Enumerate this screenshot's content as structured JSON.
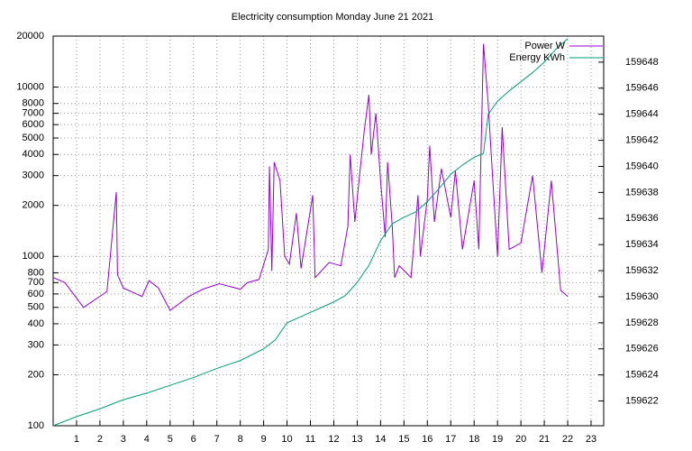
{
  "chart_data": {
    "type": "line",
    "title": "Electricity consumption Monday June 21 2021",
    "xlim": [
      0,
      23.54
    ],
    "xticks": [
      1,
      2,
      3,
      4,
      5,
      6,
      7,
      8,
      9,
      10,
      11,
      12,
      13,
      14,
      15,
      16,
      17,
      18,
      19,
      20,
      21,
      22,
      23
    ],
    "ylim": [
      100,
      20000
    ],
    "log_y": true,
    "yticks": [
      100,
      200,
      300,
      400,
      500,
      600,
      700,
      800,
      1000,
      2000,
      3000,
      4000,
      5000,
      6000,
      7000,
      8000,
      10000,
      20000
    ],
    "y2lim": [
      159620.1,
      159650
    ],
    "y2ticks": [
      159622,
      159624,
      159626,
      159628,
      159630,
      159632,
      159634,
      159636,
      159638,
      159640,
      159642,
      159644,
      159646,
      159648
    ],
    "grid": true,
    "legend": "top-right",
    "series": [
      {
        "name": "Power W",
        "color": "#9400d3",
        "x": [
          0,
          0.5,
          1.3,
          2.3,
          2.7,
          2.75,
          3,
          3.8,
          4.1,
          4.5,
          5,
          5.8,
          6.4,
          7.1,
          8,
          8.3,
          8.8,
          9.2,
          9.25,
          9.35,
          9.45,
          9.7,
          9.9,
          10.1,
          10.4,
          10.6,
          11.1,
          11.2,
          11.8,
          12.3,
          12.6,
          12.7,
          12.9,
          13.1,
          13.3,
          13.5,
          13.6,
          13.8,
          14,
          14.2,
          14.3,
          14.5,
          14.6,
          14.8,
          15.3,
          15.6,
          15.7,
          16,
          16.1,
          16.3,
          16.6,
          17,
          17.2,
          17.5,
          18,
          18.2,
          18.4,
          18.6,
          18.8,
          19,
          19.2,
          19.5,
          20,
          20.5,
          20.9,
          21.3,
          21.7,
          22
        ],
        "values": [
          750,
          700,
          500,
          620,
          2400,
          780,
          650,
          580,
          720,
          650,
          480,
          580,
          640,
          690,
          640,
          700,
          730,
          1100,
          3400,
          820,
          3600,
          2800,
          1000,
          900,
          1800,
          850,
          2300,
          750,
          920,
          880,
          1500,
          4000,
          1600,
          3000,
          5500,
          9000,
          4000,
          7000,
          2800,
          1300,
          3600,
          1500,
          750,
          880,
          750,
          2300,
          1000,
          2200,
          4500,
          1600,
          3300,
          1700,
          3200,
          1100,
          2800,
          1100,
          18000,
          8000,
          2800,
          1000,
          5800,
          1100,
          1200,
          3000,
          800,
          2800,
          630,
          580
        ]
      },
      {
        "name": "Energy KWh",
        "color": "#009e73",
        "axis": "y2",
        "x": [
          0,
          1,
          2,
          3,
          4,
          5,
          6,
          7,
          8,
          9,
          9.5,
          10,
          11,
          12,
          12.5,
          13,
          13.5,
          14,
          14.5,
          15,
          15.5,
          16,
          16.5,
          17,
          17.5,
          18,
          18.4,
          18.6,
          19,
          19.5,
          20,
          20.5,
          21,
          21.5,
          22
        ],
        "values": [
          159620.1,
          159620.8,
          159621.4,
          159622.1,
          159622.6,
          159623.2,
          159623.8,
          159624.5,
          159625.1,
          159626,
          159626.7,
          159628,
          159628.8,
          159629.6,
          159630.1,
          159631.1,
          159632.4,
          159634.3,
          159635.6,
          159636.1,
          159636.5,
          159637.3,
          159638.3,
          159639.4,
          159640.1,
          159640.7,
          159641,
          159644,
          159645,
          159645.8,
          159646.5,
          159647.2,
          159648,
          159649,
          159649.8
        ]
      }
    ]
  }
}
